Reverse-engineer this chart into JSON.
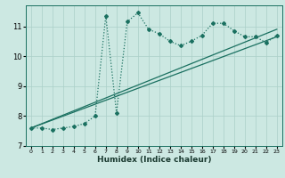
{
  "xlabel": "Humidex (Indice chaleur)",
  "ylabel": "",
  "bg_color": "#cce8e2",
  "grid_color": "#aacfc8",
  "line_color": "#1a7060",
  "xlim": [
    -0.5,
    23.5
  ],
  "ylim": [
    7.0,
    11.7
  ],
  "yticks": [
    7,
    8,
    9,
    10,
    11
  ],
  "xticks": [
    0,
    1,
    2,
    3,
    4,
    5,
    6,
    7,
    8,
    9,
    10,
    11,
    12,
    13,
    14,
    15,
    16,
    17,
    18,
    19,
    20,
    21,
    22,
    23
  ],
  "series_main": {
    "x": [
      0,
      1,
      2,
      3,
      4,
      5,
      6,
      7,
      8,
      9,
      10,
      11,
      12,
      13,
      14,
      15,
      16,
      17,
      18,
      19,
      20,
      21,
      22,
      23
    ],
    "y": [
      7.6,
      7.6,
      7.55,
      7.6,
      7.65,
      7.75,
      8.0,
      11.35,
      8.1,
      11.15,
      11.45,
      10.9,
      10.75,
      10.5,
      10.35,
      10.5,
      10.7,
      11.1,
      11.1,
      10.85,
      10.65,
      10.65,
      10.45,
      10.7
    ],
    "marker": "D",
    "markersize": 2.0,
    "linewidth": 0.9,
    "linestyle": "dotted"
  },
  "series_line1": {
    "x": [
      0,
      23
    ],
    "y": [
      7.6,
      10.65
    ],
    "linewidth": 0.9
  },
  "series_line2": {
    "x": [
      0,
      23
    ],
    "y": [
      7.6,
      10.9
    ],
    "linewidth": 0.9
  }
}
